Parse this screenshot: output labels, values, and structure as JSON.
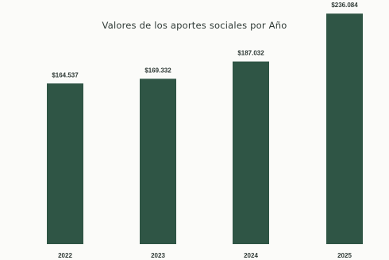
{
  "chart_data": {
    "type": "bar",
    "title": "Valores de los aportes sociales por Año",
    "categories": [
      "2022",
      "2023",
      "2024",
      "2025"
    ],
    "values": [
      164537,
      169332,
      187032,
      236084
    ],
    "data_labels": [
      "$164.537",
      "$169.332",
      "$187.032",
      "$236.084"
    ],
    "xlabel": "",
    "ylabel": "",
    "ylim": [
      0,
      250000
    ],
    "grid": false,
    "legend": "none",
    "bar_color": "#2f5545"
  }
}
